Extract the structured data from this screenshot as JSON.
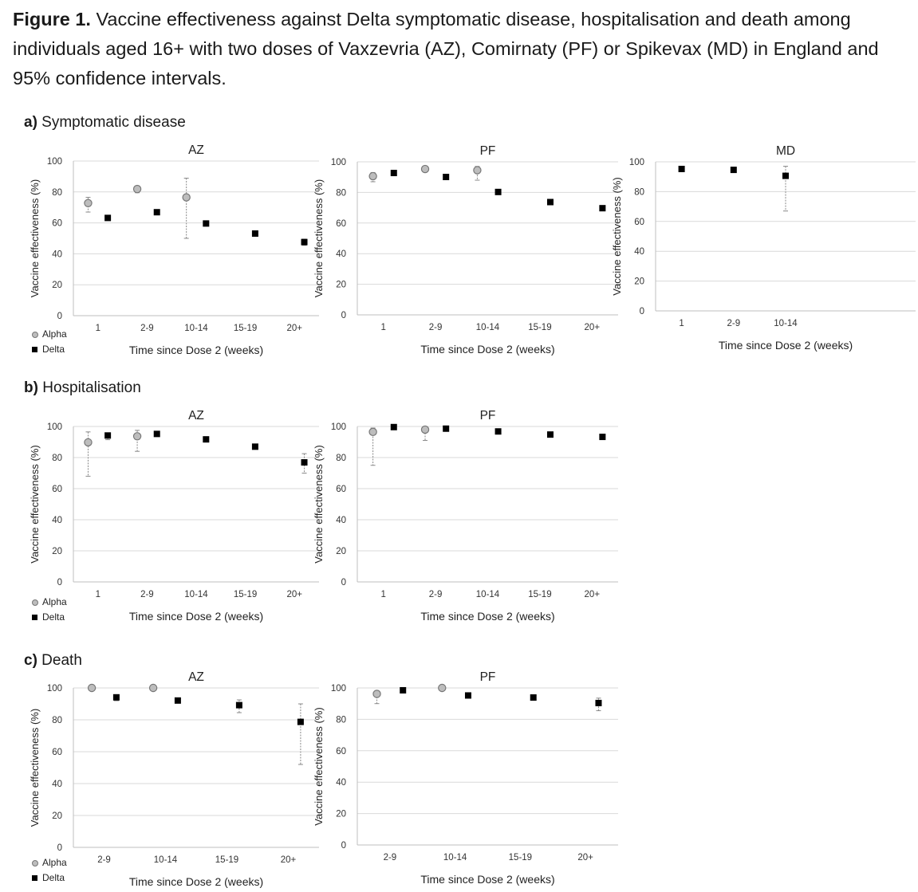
{
  "caption": {
    "label": "Figure 1.",
    "text": " Vaccine effectiveness against Delta symptomatic disease, hospitalisation and death among individuals aged 16+ with two doses of Vaxzevria (AZ), Comirnaty (PF) or Spikevax (MD) in England and 95% confidence intervals."
  },
  "sections": [
    {
      "letter": "a)",
      "title": " Symptomatic disease"
    },
    {
      "letter": "b)",
      "title": " Hospitalisation"
    },
    {
      "letter": "c)",
      "title": " Death"
    }
  ],
  "legend": {
    "alpha": "Alpha",
    "delta": "Delta"
  },
  "colors": {
    "alpha_fill": "#bdbdbd",
    "alpha_stroke": "#777777",
    "delta_fill": "#000000",
    "grid": "#d9d9d9",
    "axis": "#bfbfbf",
    "errorbar": "#888888"
  },
  "chart_data": [
    {
      "id": "a-az",
      "section": "a",
      "type": "scatter",
      "title": "AZ",
      "xlabel": "Time since Dose 2 (weeks)",
      "ylabel": "Vaccine effectiveness (%)",
      "categories": [
        "1",
        "2-9",
        "10-14",
        "15-19",
        "20+"
      ],
      "ylim": [
        0,
        100
      ],
      "yticks": [
        0,
        20,
        40,
        60,
        80,
        100
      ],
      "grid": true,
      "legend": "bottom-left",
      "series": [
        {
          "name": "Alpha",
          "values": [
            72.8,
            81.9,
            76.5,
            null,
            null
          ],
          "lower": [
            67.0,
            79.5,
            50.0,
            null,
            null
          ],
          "upper": [
            76.5,
            83.8,
            88.9,
            null,
            null
          ]
        },
        {
          "name": "Delta",
          "values": [
            63.2,
            66.9,
            59.6,
            53.1,
            47.6
          ],
          "lower": [
            62.0,
            66.0,
            58.5,
            52.0,
            45.5
          ],
          "upper": [
            64.5,
            67.8,
            60.8,
            54.3,
            49.5
          ]
        }
      ]
    },
    {
      "id": "a-pf",
      "section": "a",
      "type": "scatter",
      "title": "PF",
      "xlabel": "Time since Dose 2 (weeks)",
      "ylabel": "Vaccine effectiveness (%)",
      "categories": [
        "1",
        "2-9",
        "10-14",
        "15-19",
        "20+"
      ],
      "ylim": [
        0,
        100
      ],
      "yticks": [
        0,
        20,
        40,
        60,
        80,
        100
      ],
      "grid": true,
      "legend": "none",
      "series": [
        {
          "name": "Alpha",
          "values": [
            90.6,
            95.3,
            94.5,
            null,
            null
          ],
          "lower": [
            87.0,
            94.0,
            88.0,
            null,
            null
          ],
          "upper": [
            93.0,
            96.0,
            97.0,
            null,
            null
          ]
        },
        {
          "name": "Delta",
          "values": [
            92.7,
            90.1,
            80.3,
            73.7,
            69.7
          ],
          "lower": [
            92.0,
            89.5,
            79.5,
            73.0,
            68.5
          ],
          "upper": [
            93.5,
            90.7,
            81.0,
            74.4,
            70.8
          ]
        }
      ]
    },
    {
      "id": "a-md",
      "section": "a",
      "type": "scatter",
      "title": "MD",
      "xlabel": "Time since Dose 2 (weeks)",
      "ylabel": "Vaccine effectiveness (%)",
      "categories": [
        "1",
        "2-9",
        "10-14"
      ],
      "ylim": [
        0,
        100
      ],
      "yticks": [
        0,
        20,
        40,
        60,
        80,
        100
      ],
      "grid": true,
      "legend": "none",
      "series": [
        {
          "name": "Delta",
          "values": [
            95.2,
            94.6,
            90.6
          ],
          "lower": [
            94.5,
            94.0,
            67.0
          ],
          "upper": [
            96.0,
            95.3,
            97.0
          ]
        }
      ]
    },
    {
      "id": "b-az",
      "section": "b",
      "type": "scatter",
      "title": "AZ",
      "xlabel": "Time since Dose 2 (weeks)",
      "ylabel": "Vaccine effectiveness (%)",
      "categories": [
        "1",
        "2-9",
        "10-14",
        "15-19",
        "20+"
      ],
      "ylim": [
        0,
        100
      ],
      "yticks": [
        0,
        20,
        40,
        60,
        80,
        100
      ],
      "grid": true,
      "legend": "bottom-left",
      "series": [
        {
          "name": "Alpha",
          "values": [
            89.8,
            93.7,
            null,
            null,
            null
          ],
          "lower": [
            68.0,
            84.0,
            null,
            null,
            null
          ],
          "upper": [
            96.5,
            97.5,
            null,
            null,
            null
          ]
        },
        {
          "name": "Delta",
          "values": [
            94.2,
            95.2,
            91.7,
            87.0,
            76.9
          ],
          "lower": [
            91.5,
            94.5,
            90.7,
            85.5,
            70.0
          ],
          "upper": [
            95.8,
            95.9,
            92.6,
            88.3,
            82.5
          ]
        }
      ]
    },
    {
      "id": "b-pf",
      "section": "b",
      "type": "scatter",
      "title": "PF",
      "xlabel": "Time since Dose 2 (weeks)",
      "ylabel": "Vaccine effectiveness (%)",
      "categories": [
        "1",
        "2-9",
        "10-14",
        "15-19",
        "20+"
      ],
      "ylim": [
        0,
        100
      ],
      "yticks": [
        0,
        20,
        40,
        60,
        80,
        100
      ],
      "grid": true,
      "legend": "none",
      "series": [
        {
          "name": "Alpha",
          "values": [
            96.5,
            98.0,
            null,
            null,
            null
          ],
          "lower": [
            75.0,
            91.0,
            null,
            null,
            null
          ],
          "upper": [
            99.0,
            99.5,
            null,
            null,
            null
          ]
        },
        {
          "name": "Delta",
          "values": [
            99.6,
            98.6,
            96.8,
            94.8,
            93.3
          ],
          "lower": [
            99.0,
            98.0,
            96.0,
            94.0,
            92.0
          ],
          "upper": [
            100.0,
            99.2,
            97.4,
            95.6,
            94.5
          ]
        }
      ]
    },
    {
      "id": "c-az",
      "section": "c",
      "type": "scatter",
      "title": "AZ",
      "xlabel": "Time since Dose 2 (weeks)",
      "ylabel": "Vaccine effectiveness (%)",
      "categories": [
        "2-9",
        "10-14",
        "15-19",
        "20+"
      ],
      "ylim": [
        0,
        100
      ],
      "yticks": [
        0,
        20,
        40,
        60,
        80,
        100
      ],
      "grid": true,
      "legend": "bottom-left",
      "series": [
        {
          "name": "Alpha",
          "values": [
            100,
            100,
            null,
            null
          ],
          "lower": [
            100,
            100,
            null,
            null
          ],
          "upper": [
            100,
            100,
            null,
            null
          ]
        },
        {
          "name": "Delta",
          "values": [
            94.1,
            92.1,
            89.2,
            78.7
          ],
          "lower": [
            92.0,
            90.5,
            84.5,
            52.0
          ],
          "upper": [
            95.5,
            93.5,
            92.5,
            90.0
          ]
        }
      ]
    },
    {
      "id": "c-pf",
      "section": "c",
      "type": "scatter",
      "title": "PF",
      "xlabel": "Time since Dose 2 (weeks)",
      "ylabel": "Vaccine effectiveness (%)",
      "categories": [
        "2-9",
        "10-14",
        "15-19",
        "20+"
      ],
      "ylim": [
        0,
        100
      ],
      "yticks": [
        0,
        20,
        40,
        60,
        80,
        100
      ],
      "grid": true,
      "legend": "none",
      "series": [
        {
          "name": "Alpha",
          "values": [
            96.2,
            100,
            null,
            null
          ],
          "lower": [
            90.0,
            100,
            null,
            null
          ],
          "upper": [
            98.0,
            100,
            null,
            null
          ]
        },
        {
          "name": "Delta",
          "values": [
            98.5,
            95.2,
            93.9,
            90.4
          ],
          "lower": [
            97.5,
            94.5,
            93.0,
            85.5
          ],
          "upper": [
            99.2,
            96.0,
            94.8,
            93.5
          ]
        }
      ]
    }
  ]
}
